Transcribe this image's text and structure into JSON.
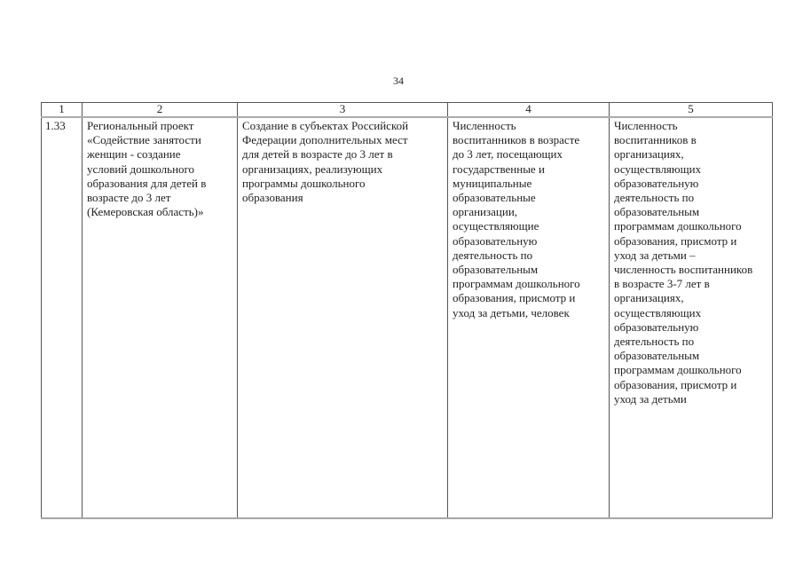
{
  "page": {
    "number": "34"
  },
  "table": {
    "headers": [
      "1",
      "2",
      "3",
      "4",
      "5"
    ],
    "rows": [
      {
        "number": "1.33",
        "project_name": "Региональный проект\n«Содействие занятости\nженщин - создание\nусловий дошкольного\nобразования для детей в\nвозрасте до 3 лет\n(Кемеровская область)»",
        "result": "Создание в субъектах Российской\nФедерации дополнительных мест\nдля детей в возрасте до 3 лет в\nорганизациях, реализующих\nпрограммы дошкольного\nобразования",
        "indicator": "Численность\nвоспитанников в возрасте\nдо 3 лет, посещающих\nгосударственные и\nмуниципальные\nобразовательные\nорганизации,\nосуществляющие\nобразовательную\nдеятельность по\nобразовательным\nпрограммам дошкольного\nобразования, присмотр и\nуход за детьми, человек",
        "definition": "Численность\nвоспитанников в\nорганизациях,\nосуществляющих\nобразовательную\nдеятельность по\nобразовательным\nпрограммам дошкольного\nобразования, присмотр и\nуход за детьми –\nчисленность воспитанников\nв возрасте 3-7 лет в\nорганизациях,\nосуществляющих\nобразовательную\nдеятельность по\nобразовательным\nпрограммам дошкольного\nобразования, присмотр и\nуход за детьми"
      }
    ]
  },
  "colors": {
    "background": "#ffffff",
    "text": "#1f1f1f",
    "border_dark": "#565656",
    "border_light": "#ababab"
  }
}
